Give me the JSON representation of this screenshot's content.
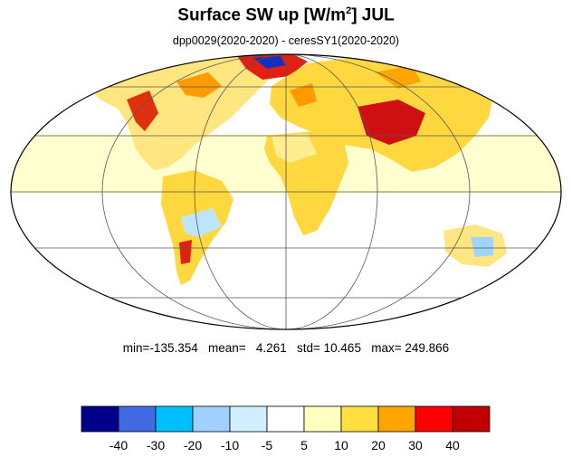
{
  "title": {
    "main": "Surface SW up [W/m",
    "superscript": "2",
    "suffix": "]  JUL"
  },
  "subtitle": "dpp0029(2020-2020) - ceresSY1(2020-2020)",
  "stats": {
    "min_label": "min=",
    "min": "-135.354",
    "mean_label": "mean=",
    "mean": "4.261",
    "std_label": "std=",
    "std": "10.465",
    "max_label": "max=",
    "max": "249.866"
  },
  "colorbar": {
    "colors": [
      "#00008b",
      "#4169e1",
      "#00bfff",
      "#a0d0ff",
      "#d0f0ff",
      "#ffffff",
      "#ffffc0",
      "#ffe040",
      "#ffa500",
      "#ff0000",
      "#c00000"
    ],
    "tick_labels": [
      "-40",
      "-30",
      "-20",
      "-10",
      "-5",
      "5",
      "10",
      "20",
      "30",
      "40"
    ]
  },
  "map": {
    "projection": "mollweide",
    "ocean_color": "#ffffff",
    "coast_color": "#000000"
  }
}
